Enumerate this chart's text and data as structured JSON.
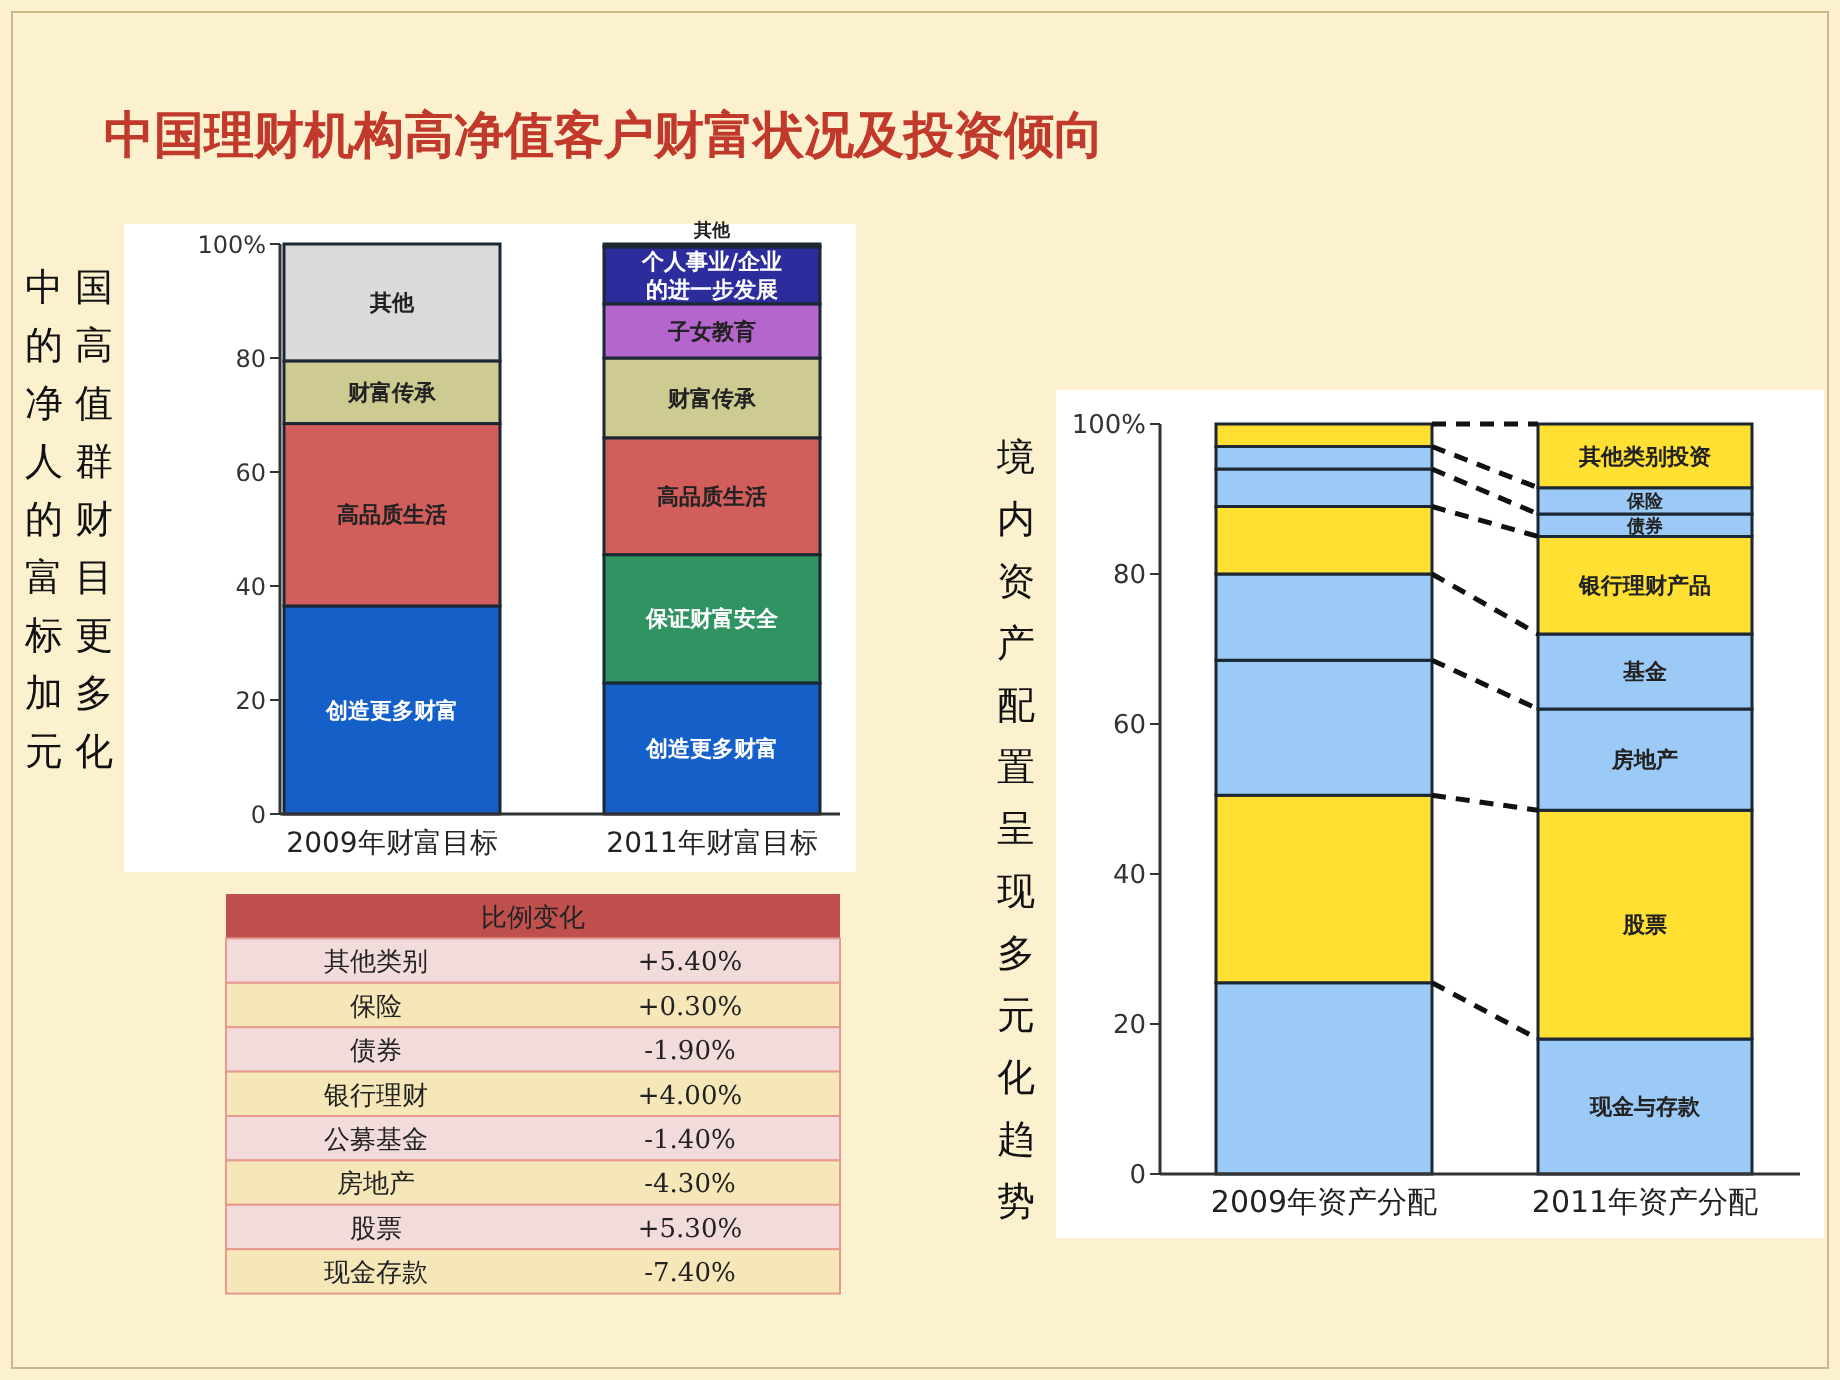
{
  "chart_data": [
    {
      "type": "bar",
      "stacked": true,
      "title": "中国理财机构高净值客户财富状况及投资倾向",
      "annotations": [
        "中国的高净值人群的财富目标更加多元化"
      ],
      "categories": [
        "2009年财富目标",
        "2011年财富目标"
      ],
      "ylim": [
        0,
        100
      ],
      "yticks": [
        0,
        20,
        40,
        60,
        80,
        {
          "value": 100,
          "label": "100%"
        }
      ],
      "series": [
        {
          "color": "#1560c8",
          "values": [
            36.5,
            23
          ],
          "value_labels": [
            "创造更多财富",
            "创造更多财富"
          ]
        },
        {
          "color": "#2f9462",
          "values": [
            null,
            22.5
          ],
          "value_labels": [
            null,
            "保证财富安全"
          ]
        },
        {
          "color": "#d25e5c",
          "values": [
            32,
            20.5
          ],
          "value_labels": [
            "高品质生活",
            "高品质生活"
          ]
        },
        {
          "color": "#cdcb92",
          "values": [
            11,
            14
          ],
          "value_labels": [
            "财富传承",
            "财富传承"
          ]
        },
        {
          "color": "#b466cc",
          "values": [
            null,
            9.5
          ],
          "value_labels": [
            null,
            "子女教育"
          ]
        },
        {
          "color": "#2c2c9c",
          "values": [
            null,
            10
          ],
          "value_labels": [
            null,
            "个人事业/企业的进一步发展"
          ]
        },
        {
          "color": "#dadada",
          "values": [
            20.5,
            0.5
          ],
          "value_labels": [
            "其他",
            "其他"
          ]
        }
      ]
    },
    {
      "type": "bar",
      "stacked": true,
      "annotations": [
        "境内资产配置呈现多元化趋势"
      ],
      "categories": [
        "2009年资产分配",
        "2011年资产分配"
      ],
      "ylim": [
        0,
        100
      ],
      "yticks": [
        0,
        20,
        40,
        60,
        80,
        {
          "value": 100,
          "label": "100%"
        }
      ],
      "series": [
        {
          "color": "#9ccaf6",
          "values": [
            25.5,
            18
          ],
          "value_labels": [
            null,
            "现金与存款"
          ]
        },
        {
          "color": "#ffe033",
          "values": [
            25,
            30.5
          ],
          "value_labels": [
            null,
            "股票"
          ]
        },
        {
          "color": "#9ccaf6",
          "values": [
            18,
            13.5
          ],
          "value_labels": [
            null,
            "房地产"
          ]
        },
        {
          "color": "#9ccaf6",
          "values": [
            11.5,
            10
          ],
          "value_labels": [
            null,
            "基金"
          ]
        },
        {
          "color": "#ffe033",
          "values": [
            9,
            13
          ],
          "value_labels": [
            null,
            "银行理财产品"
          ]
        },
        {
          "color": "#9ccaf6",
          "values": [
            5,
            3
          ],
          "value_labels": [
            null,
            "债券"
          ]
        },
        {
          "color": "#9ccaf6",
          "values": [
            3,
            3.5
          ],
          "value_labels": [
            null,
            "保险"
          ]
        },
        {
          "color": "#ffe033",
          "values": [
            3,
            8.5
          ],
          "value_labels": [
            null,
            "其他类别投资"
          ]
        }
      ]
    },
    {
      "type": "other",
      "title": "比例变化",
      "categories": [
        "其他类别",
        "保险",
        "债券",
        "银行理财",
        "公募基金",
        "房地产",
        "股票",
        "现金存款"
      ],
      "value_labels": [
        "+5.40%",
        "+0.30%",
        "-1.90%",
        "+4.00%",
        "-1.40%",
        "-4.30%",
        "+5.30%",
        "-7.40%"
      ]
    }
  ]
}
